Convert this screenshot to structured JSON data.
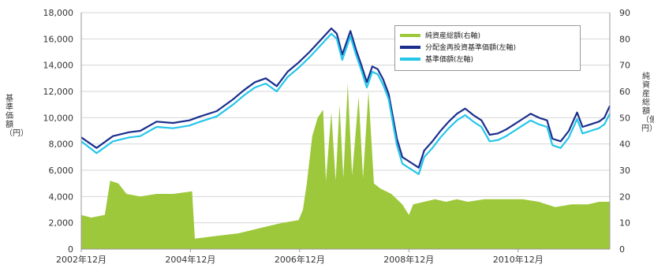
{
  "chart_data": {
    "type": "line",
    "x_tick_labels": [
      "2002年12月",
      "2004年12月",
      "2006年12月",
      "2008年12月",
      "2010年12月"
    ],
    "y_left_ticks": [
      "0",
      "2,000",
      "4,000",
      "6,000",
      "8,000",
      "10,000",
      "12,000",
      "14,000",
      "16,000",
      "18,000"
    ],
    "y_right_ticks": [
      "0",
      "10",
      "20",
      "30",
      "40",
      "50",
      "60",
      "70",
      "80",
      "90"
    ],
    "y_left_label": "基準価額（円）",
    "y_right_label": "純資産総額（億円）",
    "ylim_left": [
      0,
      18000
    ],
    "ylim_right": [
      0,
      90
    ],
    "x_range_years": [
      2002.92,
      2012.6
    ],
    "legend_position": "top-right",
    "grid": true,
    "legend": [
      {
        "name": "純資産総額(右軸)",
        "color": "#9dc83b"
      },
      {
        "name": "分配金再投資基準価額(左軸)",
        "color": "#1a2e8c"
      },
      {
        "name": "基準価額(左軸)",
        "color": "#25c6ea"
      }
    ],
    "series": [
      {
        "name": "分配金再投資基準価額(左軸)",
        "axis": "left",
        "color": "#1a2e8c",
        "points": [
          [
            2002.92,
            8500
          ],
          [
            2003.2,
            7700
          ],
          [
            2003.5,
            8600
          ],
          [
            2003.8,
            8900
          ],
          [
            2004.0,
            9000
          ],
          [
            2004.3,
            9700
          ],
          [
            2004.6,
            9600
          ],
          [
            2004.9,
            9800
          ],
          [
            2005.1,
            10100
          ],
          [
            2005.4,
            10500
          ],
          [
            2005.7,
            11400
          ],
          [
            2005.9,
            12100
          ],
          [
            2006.1,
            12700
          ],
          [
            2006.3,
            13000
          ],
          [
            2006.5,
            12400
          ],
          [
            2006.7,
            13500
          ],
          [
            2006.9,
            14200
          ],
          [
            2007.1,
            15000
          ],
          [
            2007.3,
            15900
          ],
          [
            2007.5,
            16800
          ],
          [
            2007.6,
            16400
          ],
          [
            2007.7,
            14800
          ],
          [
            2007.85,
            16600
          ],
          [
            2007.95,
            15200
          ],
          [
            2008.05,
            14000
          ],
          [
            2008.15,
            12700
          ],
          [
            2008.25,
            13900
          ],
          [
            2008.35,
            13700
          ],
          [
            2008.45,
            12900
          ],
          [
            2008.55,
            11800
          ],
          [
            2008.7,
            8400
          ],
          [
            2008.8,
            7000
          ],
          [
            2008.95,
            6600
          ],
          [
            2009.1,
            6200
          ],
          [
            2009.2,
            7500
          ],
          [
            2009.35,
            8200
          ],
          [
            2009.5,
            9000
          ],
          [
            2009.65,
            9700
          ],
          [
            2009.8,
            10300
          ],
          [
            2009.95,
            10700
          ],
          [
            2010.1,
            10200
          ],
          [
            2010.25,
            9800
          ],
          [
            2010.4,
            8700
          ],
          [
            2010.55,
            8800
          ],
          [
            2010.7,
            9100
          ],
          [
            2010.85,
            9500
          ],
          [
            2011.0,
            9900
          ],
          [
            2011.15,
            10300
          ],
          [
            2011.3,
            10000
          ],
          [
            2011.45,
            9800
          ],
          [
            2011.55,
            8400
          ],
          [
            2011.7,
            8200
          ],
          [
            2011.85,
            9000
          ],
          [
            2012.0,
            10400
          ],
          [
            2012.1,
            9300
          ],
          [
            2012.25,
            9500
          ],
          [
            2012.4,
            9700
          ],
          [
            2012.5,
            10000
          ],
          [
            2012.6,
            10900
          ]
        ]
      },
      {
        "name": "基準価額(左軸)",
        "axis": "left",
        "color": "#25c6ea",
        "points": [
          [
            2002.92,
            8200
          ],
          [
            2003.2,
            7300
          ],
          [
            2003.5,
            8200
          ],
          [
            2003.8,
            8500
          ],
          [
            2004.0,
            8600
          ],
          [
            2004.3,
            9300
          ],
          [
            2004.6,
            9200
          ],
          [
            2004.9,
            9400
          ],
          [
            2005.1,
            9700
          ],
          [
            2005.4,
            10100
          ],
          [
            2005.7,
            11000
          ],
          [
            2005.9,
            11700
          ],
          [
            2006.1,
            12300
          ],
          [
            2006.3,
            12600
          ],
          [
            2006.5,
            12000
          ],
          [
            2006.7,
            13100
          ],
          [
            2006.9,
            13800
          ],
          [
            2007.1,
            14600
          ],
          [
            2007.3,
            15500
          ],
          [
            2007.5,
            16400
          ],
          [
            2007.6,
            16000
          ],
          [
            2007.7,
            14400
          ],
          [
            2007.85,
            16200
          ],
          [
            2007.95,
            14800
          ],
          [
            2008.05,
            13600
          ],
          [
            2008.15,
            12300
          ],
          [
            2008.25,
            13500
          ],
          [
            2008.35,
            13300
          ],
          [
            2008.45,
            12500
          ],
          [
            2008.55,
            11400
          ],
          [
            2008.7,
            7900
          ],
          [
            2008.8,
            6500
          ],
          [
            2008.95,
            6100
          ],
          [
            2009.1,
            5700
          ],
          [
            2009.2,
            7000
          ],
          [
            2009.35,
            7700
          ],
          [
            2009.5,
            8500
          ],
          [
            2009.65,
            9200
          ],
          [
            2009.8,
            9800
          ],
          [
            2009.95,
            10200
          ],
          [
            2010.1,
            9700
          ],
          [
            2010.25,
            9300
          ],
          [
            2010.4,
            8200
          ],
          [
            2010.55,
            8300
          ],
          [
            2010.7,
            8600
          ],
          [
            2010.85,
            9000
          ],
          [
            2011.0,
            9400
          ],
          [
            2011.15,
            9800
          ],
          [
            2011.3,
            9500
          ],
          [
            2011.45,
            9300
          ],
          [
            2011.55,
            7900
          ],
          [
            2011.7,
            7700
          ],
          [
            2011.85,
            8500
          ],
          [
            2012.0,
            9900
          ],
          [
            2012.1,
            8800
          ],
          [
            2012.25,
            9000
          ],
          [
            2012.4,
            9200
          ],
          [
            2012.5,
            9500
          ],
          [
            2012.6,
            10300
          ]
        ]
      },
      {
        "name": "純資産総額(右軸)",
        "axis": "right",
        "type": "area",
        "color": "#9dc83b",
        "points": [
          [
            2002.92,
            13
          ],
          [
            2003.1,
            12
          ],
          [
            2003.35,
            13
          ],
          [
            2003.45,
            26
          ],
          [
            2003.6,
            25
          ],
          [
            2003.75,
            21
          ],
          [
            2004.0,
            20
          ],
          [
            2004.3,
            21
          ],
          [
            2004.6,
            21
          ],
          [
            2004.95,
            22
          ],
          [
            2005.0,
            4
          ],
          [
            2005.4,
            5
          ],
          [
            2005.8,
            6
          ],
          [
            2006.2,
            8
          ],
          [
            2006.6,
            10
          ],
          [
            2006.9,
            11
          ],
          [
            2006.98,
            15
          ],
          [
            2007.05,
            25
          ],
          [
            2007.15,
            43
          ],
          [
            2007.25,
            50
          ],
          [
            2007.35,
            53
          ],
          [
            2007.4,
            26
          ],
          [
            2007.5,
            52
          ],
          [
            2007.58,
            26
          ],
          [
            2007.65,
            55
          ],
          [
            2007.72,
            27
          ],
          [
            2007.8,
            63
          ],
          [
            2007.88,
            28
          ],
          [
            2008.0,
            58
          ],
          [
            2008.08,
            27
          ],
          [
            2008.18,
            60
          ],
          [
            2008.28,
            25
          ],
          [
            2008.4,
            23
          ],
          [
            2008.6,
            21
          ],
          [
            2008.8,
            17
          ],
          [
            2008.92,
            13
          ],
          [
            2009.0,
            17
          ],
          [
            2009.2,
            18
          ],
          [
            2009.4,
            19
          ],
          [
            2009.6,
            18
          ],
          [
            2009.8,
            19
          ],
          [
            2010.0,
            18
          ],
          [
            2010.3,
            19
          ],
          [
            2010.6,
            19
          ],
          [
            2011.0,
            19
          ],
          [
            2011.3,
            18
          ],
          [
            2011.6,
            16
          ],
          [
            2011.9,
            17
          ],
          [
            2012.2,
            17
          ],
          [
            2012.4,
            18
          ],
          [
            2012.6,
            18
          ]
        ]
      }
    ]
  }
}
